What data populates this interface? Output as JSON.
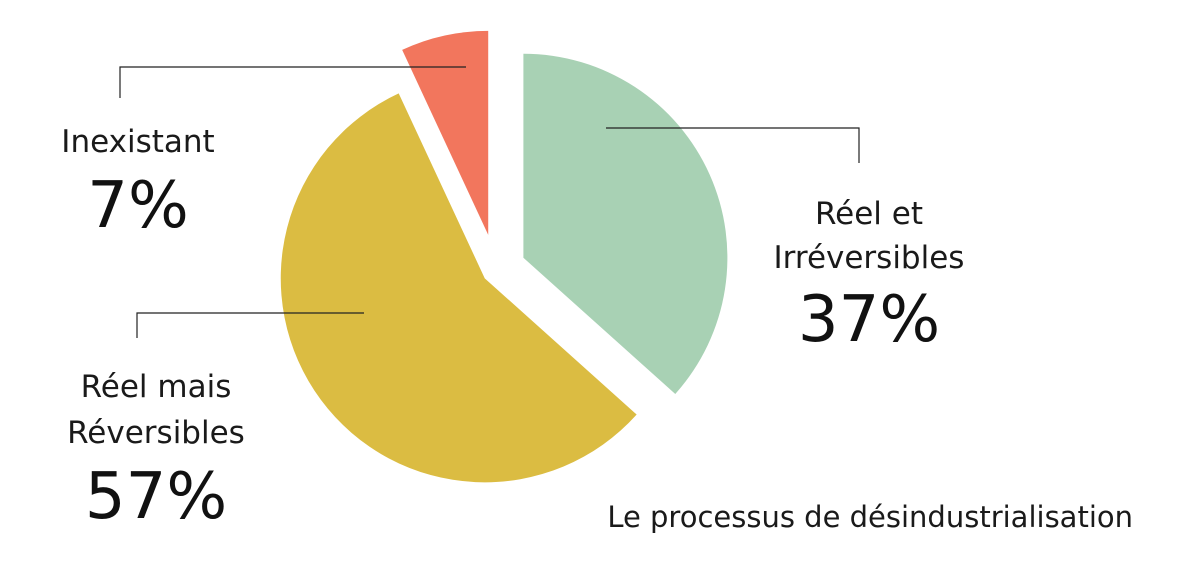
{
  "chart_data": {
    "type": "pie",
    "title": "Le processus de désindustrialisation",
    "slices": [
      {
        "label_lines": [
          "Réel et",
          "Irréversibles"
        ],
        "value": 37,
        "value_label": "37%",
        "color": "#a8d1b4"
      },
      {
        "label_lines": [
          "Réel mais",
          "Réversibles"
        ],
        "value": 57,
        "value_label": "57%",
        "color": "#dbbc42"
      },
      {
        "label_lines": [
          "Inexistant"
        ],
        "value": 7,
        "value_label": "7%",
        "color": "#f2765d"
      }
    ]
  }
}
